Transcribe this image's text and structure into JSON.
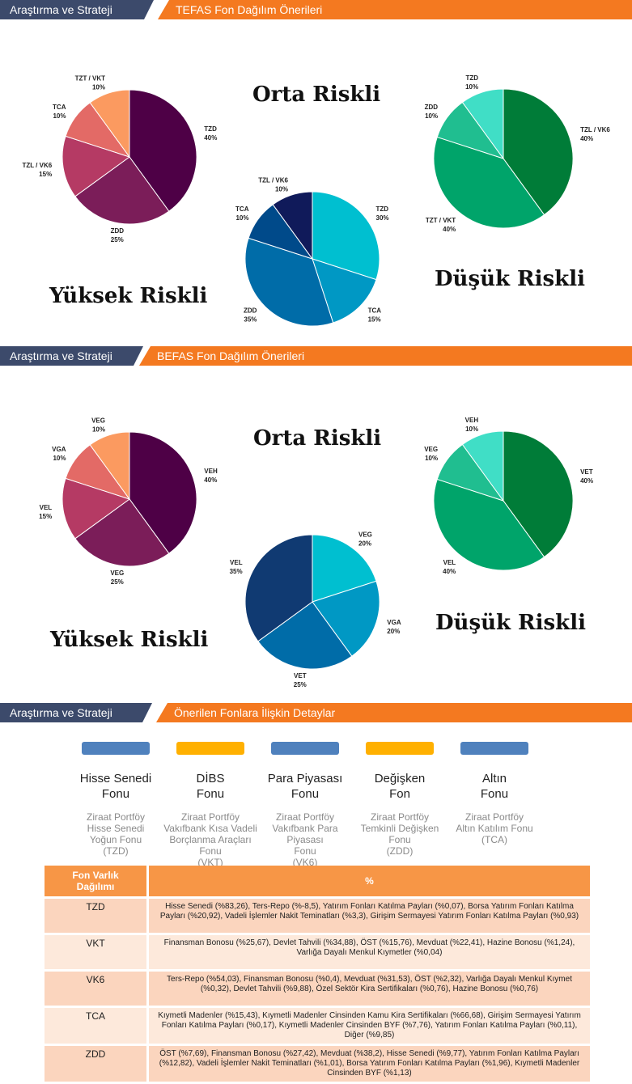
{
  "banners": [
    {
      "left": "Araştırma ve Strateji",
      "right": "TEFAS Fon Dağılım Önerileri"
    },
    {
      "left": "Araştırma ve Strateji",
      "right": "BEFAS Fon Dağılım Önerileri"
    },
    {
      "left": "Araştırma ve Strateji",
      "right": "Önerilen Fonlara İlişkin Detaylar"
    }
  ],
  "risk_labels": {
    "high": "Yüksek Riskli",
    "medium": "Orta Riskli",
    "low": "Düşük Riskli"
  },
  "chart_data": [
    {
      "type": "pie",
      "group": "TEFAS",
      "risk": "Yüksek Riskli",
      "slices": [
        {
          "label": "TZD",
          "value": 40,
          "color": "#4e0046"
        },
        {
          "label": "ZDD",
          "value": 25,
          "color": "#7b1d59"
        },
        {
          "label": "TZL / VK6",
          "value": 15,
          "color": "#b53a64"
        },
        {
          "label": "TCA",
          "value": 10,
          "color": "#e36a66"
        },
        {
          "label": "TZT / VKT",
          "value": 10,
          "color": "#fb9a60"
        }
      ]
    },
    {
      "type": "pie",
      "group": "TEFAS",
      "risk": "Orta Riskli",
      "slices": [
        {
          "label": "TZD",
          "value": 30,
          "color": "#00bfd0"
        },
        {
          "label": "TCA",
          "value": 15,
          "color": "#0098c4"
        },
        {
          "label": "ZDD",
          "value": 35,
          "color": "#006ca8"
        },
        {
          "label": "TCA",
          "value": 10,
          "color": "#004a8a"
        },
        {
          "label": "TZL / VK6",
          "value": 10,
          "color": "#101a5a"
        }
      ]
    },
    {
      "type": "pie",
      "group": "TEFAS",
      "risk": "Düşük Riskli",
      "slices": [
        {
          "label": "TZL / VK6",
          "value": 40,
          "color": "#007c38"
        },
        {
          "label": "TZT / VKT",
          "value": 40,
          "color": "#00a46a"
        },
        {
          "label": "ZDD",
          "value": 10,
          "color": "#20be90"
        },
        {
          "label": "TZD",
          "value": 10,
          "color": "#40dec6"
        }
      ]
    },
    {
      "type": "pie",
      "group": "BEFAS",
      "risk": "Yüksek Riskli",
      "slices": [
        {
          "label": "VEH",
          "value": 40,
          "color": "#4e0046"
        },
        {
          "label": "VEG",
          "value": 25,
          "color": "#7b1d59"
        },
        {
          "label": "VEL",
          "value": 15,
          "color": "#b53a64"
        },
        {
          "label": "VGA",
          "value": 10,
          "color": "#e36a66"
        },
        {
          "label": "VEG",
          "value": 10,
          "color": "#fb9a60"
        }
      ]
    },
    {
      "type": "pie",
      "group": "BEFAS",
      "risk": "Orta Riskli",
      "slices": [
        {
          "label": "VEG",
          "value": 20,
          "color": "#00bfd0"
        },
        {
          "label": "VGA",
          "value": 20,
          "color": "#0098c4"
        },
        {
          "label": "VET",
          "value": 25,
          "color": "#006ca8"
        },
        {
          "label": "VEL",
          "value": 35,
          "color": "#103a72"
        }
      ]
    },
    {
      "type": "pie",
      "group": "BEFAS",
      "risk": "Düşük Riskli",
      "slices": [
        {
          "label": "VET",
          "value": 40,
          "color": "#007c38"
        },
        {
          "label": "VEL",
          "value": 40,
          "color": "#00a46a"
        },
        {
          "label": "VEG",
          "value": 10,
          "color": "#20be90"
        },
        {
          "label": "VEH",
          "value": 10,
          "color": "#40dec6"
        }
      ]
    }
  ],
  "funds": [
    {
      "name": "Hisse Senedi\nFonu",
      "sub": "Ziraat Portföy\nHisse Senedi\nYoğun Fonu\n(TZD)",
      "color": "#4f81bd"
    },
    {
      "name": "DİBS\nFonu",
      "sub": "Ziraat Portföy\nVakıfbank Kısa Vadeli\nBorçlanma Araçları\nFonu\n(VKT)",
      "color": "#ffb000"
    },
    {
      "name": "Para Piyasası\nFonu",
      "sub": "Ziraat Portföy\nVakıfbank Para\nPiyasası\nFonu\n(VK6)",
      "color": "#4f81bd"
    },
    {
      "name": "Değişken\nFon",
      "sub": "Ziraat Portföy\nTemkinli Değişken\nFonu\n(ZDD)",
      "color": "#ffb000"
    },
    {
      "name": "Altın\nFonu",
      "sub": "Ziraat Portföy\nAltın Katılım Fonu\n(TCA)",
      "color": "#4f81bd"
    }
  ],
  "table": {
    "header_code": "Fon Varlık\nDağılımı",
    "header_pct": "%",
    "rows": [
      {
        "code": "TZD",
        "desc": "Hisse Senedi (%83,26), Ters-Repo (%-8,5), Yatırım Fonları Katılma Payları (%0,07), Borsa Yatırım Fonları Katılma Payları (%20,92), Vadeli İşlemler Nakit Teminatları (%3,3), Girişim Sermayesi Yatırım Fonları Katılma Payları (%0,93)"
      },
      {
        "code": "VKT",
        "desc": "Finansman Bonosu (%25,67), Devlet Tahvili (%34,88), ÖST (%15,76), Mevduat (%22,41), Hazine Bonosu (%1,24), Varlığa Dayalı Menkul Kıymetler (%0,04)"
      },
      {
        "code": "VK6",
        "desc": "Ters-Repo (%54,03), Finansman Bonosu (%0,4), Mevduat (%31,53), ÖST (%2,32), Varlığa Dayalı Menkul Kıymet (%0,32), Devlet Tahvili (%9,88), Özel Sektör Kira Sertifikaları (%0,76), Hazine Bonosu (%0,76)"
      },
      {
        "code": "TCA",
        "desc": "Kıymetli Madenler (%15,43), Kıymetli Madenler Cinsinden Kamu Kira Sertifikaları (%66,68), Girişim Sermayesi Yatırım Fonları Katılma Payları (%0,17), Kıymetli Madenler Cinsinden BYF (%7,76), Yatırım Fonları Katılma Payları (%0,11), Diğer (%9,85)"
      },
      {
        "code": "ZDD",
        "desc": "ÖST (%7,69), Finansman Bonosu (%27,42), Mevduat (%38,2), Hisse Senedi (%9,77), Yatırım Fonları Katılma Payları (%12,82), Vadeli İşlemler Nakit Teminatları (%1,01), Borsa Yatırım Fonları Katılma Payları (%1,96), Kıymetli Madenler Cinsinden BYF (%1,13)"
      }
    ]
  }
}
